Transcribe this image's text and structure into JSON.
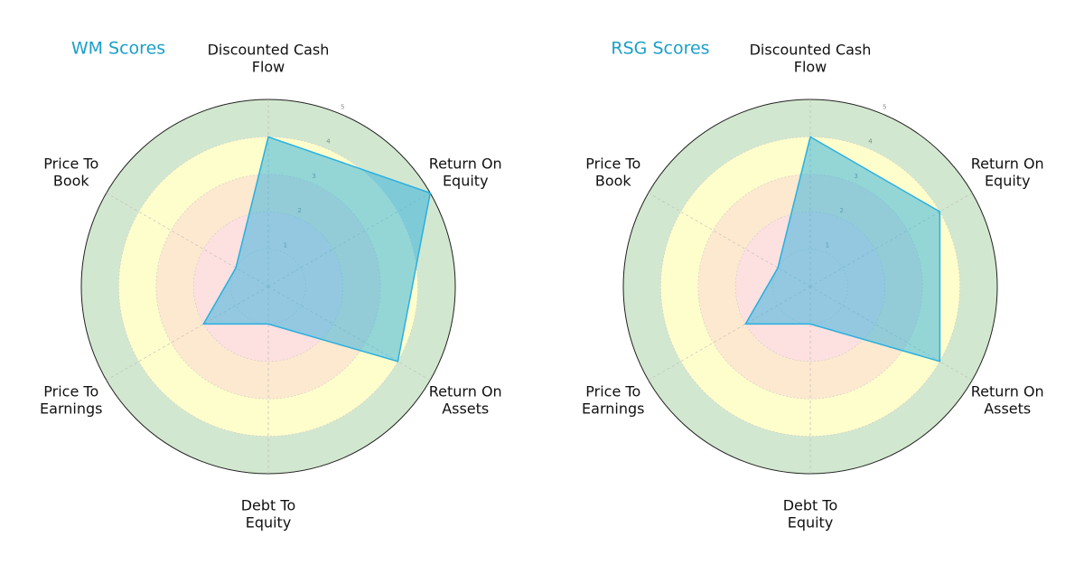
{
  "chart_data": [
    {
      "type": "radar",
      "title": "WM Scores",
      "categories": [
        "Discounted Cash\nFlow",
        "Return On\nEquity",
        "Return On\nAssets",
        "Debt To\nEquity",
        "Price To\nEarnings",
        "Price To\nBook"
      ],
      "values": [
        4,
        5,
        4,
        1,
        2,
        1
      ],
      "color": "#29b0e0",
      "rlim": [
        0,
        5
      ],
      "rticks": [
        1,
        2,
        3,
        4,
        5
      ],
      "bands": [
        {
          "from": 0,
          "to": 2,
          "color": "#fde0e0"
        },
        {
          "from": 2,
          "to": 3,
          "color": "#fde9cf"
        },
        {
          "from": 3,
          "to": 4,
          "color": "#fefdcc"
        },
        {
          "from": 4,
          "to": 5,
          "color": "#d2e7cf"
        }
      ]
    },
    {
      "type": "radar",
      "title": "RSG Scores",
      "categories": [
        "Discounted Cash\nFlow",
        "Return On\nEquity",
        "Return On\nAssets",
        "Debt To\nEquity",
        "Price To\nEarnings",
        "Price To\nBook"
      ],
      "values": [
        4,
        4,
        4,
        1,
        2,
        1
      ],
      "color": "#29b0e0",
      "rlim": [
        0,
        5
      ],
      "rticks": [
        1,
        2,
        3,
        4,
        5
      ],
      "bands": [
        {
          "from": 0,
          "to": 2,
          "color": "#fde0e0"
        },
        {
          "from": 2,
          "to": 3,
          "color": "#fde9cf"
        },
        {
          "from": 3,
          "to": 4,
          "color": "#fefdcc"
        },
        {
          "from": 4,
          "to": 5,
          "color": "#d2e7cf"
        }
      ]
    }
  ]
}
